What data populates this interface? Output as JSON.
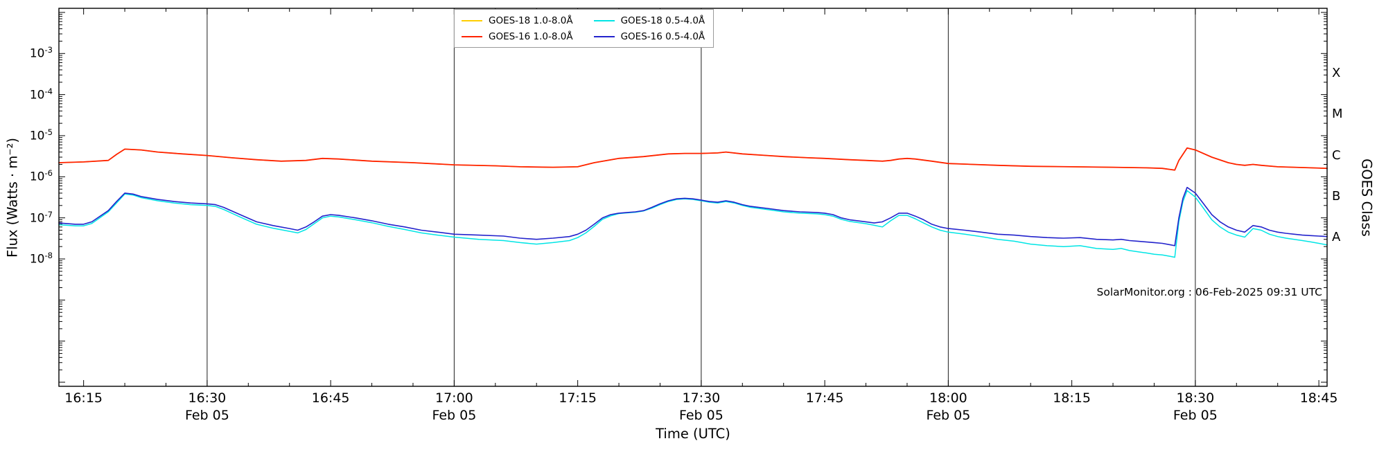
{
  "page": {
    "watermark": "SolarMonitor.org : 06-Feb-2025 09:31 UTC"
  },
  "chart_data": {
    "type": "line",
    "title": "",
    "xlabel": "Time (UTC)",
    "ylabel": "Flux (Watts · m⁻²)",
    "ylabel_right": "GOES Class",
    "grid": "vertical lines at 30-minute marks",
    "legend_position": "top-center, two columns",
    "x_axis": {
      "encoding": "minutes after 16:00 UTC",
      "start_minutes": 12,
      "end_minutes": 166,
      "minor_tick_step": 5,
      "major_ticks": [
        {
          "minute": 15,
          "label": "16:15"
        },
        {
          "minute": 30,
          "label": "16:30"
        },
        {
          "minute": 45,
          "label": "16:45"
        },
        {
          "minute": 60,
          "label": "17:00"
        },
        {
          "minute": 75,
          "label": "17:15"
        },
        {
          "minute": 90,
          "label": "17:30"
        },
        {
          "minute": 105,
          "label": "17:45"
        },
        {
          "minute": 120,
          "label": "18:00"
        },
        {
          "minute": 135,
          "label": "18:15"
        },
        {
          "minute": 150,
          "label": "18:30"
        },
        {
          "minute": 165,
          "label": "18:45"
        }
      ],
      "date_label": "Feb 05",
      "date_tick_minutes": [
        30,
        60,
        90,
        120,
        150
      ],
      "gridline_minutes": [
        30,
        60,
        90,
        120,
        150
      ]
    },
    "y_axis": {
      "scale": "log10",
      "log_min_exp": -11.1,
      "log_max_exp": -1.9,
      "ticks": [
        {
          "exponent": -3,
          "label": "10^-3"
        },
        {
          "exponent": -4,
          "label": "10^-4"
        },
        {
          "exponent": -5,
          "label": "10^-5"
        },
        {
          "exponent": -6,
          "label": "10^-6"
        },
        {
          "exponent": -7,
          "label": "10^-7"
        },
        {
          "exponent": -8,
          "label": "10^-8"
        }
      ]
    },
    "goes_classes": [
      {
        "letter": "X",
        "log10_center": -3.5
      },
      {
        "letter": "M",
        "log10_center": -4.5
      },
      {
        "letter": "C",
        "log10_center": -5.5
      },
      {
        "letter": "B",
        "log10_center": -6.5
      },
      {
        "letter": "A",
        "log10_center": -7.5
      }
    ],
    "series": [
      {
        "label": "GOES-18 1.0-8.0Å",
        "color": "#ffce00",
        "width": 1.5,
        "x": [
          12,
          15,
          18,
          19,
          20,
          22,
          24,
          27,
          30,
          33,
          36,
          39,
          42,
          44,
          46,
          50,
          55,
          60,
          65,
          68,
          72,
          75,
          77,
          80,
          83,
          86,
          88,
          90,
          92,
          93,
          95,
          98,
          100,
          103,
          105,
          108,
          110,
          112,
          113,
          114,
          115,
          116,
          118,
          120,
          123,
          126,
          130,
          135,
          140,
          144,
          146,
          147,
          147.5,
          148,
          149,
          150,
          152,
          154,
          155,
          156,
          157,
          158,
          160,
          162,
          164,
          166
        ],
        "y": [
          2.2e-06,
          2.3e-06,
          2.5e-06,
          3.5e-06,
          4.7e-06,
          4.5e-06,
          4e-06,
          3.6e-06,
          3.3e-06,
          2.9e-06,
          2.6e-06,
          2.4e-06,
          2.5e-06,
          2.8e-06,
          2.7e-06,
          2.4e-06,
          2.2e-06,
          1.95e-06,
          1.85e-06,
          1.75e-06,
          1.7e-06,
          1.75e-06,
          2.2e-06,
          2.8e-06,
          3.1e-06,
          3.6e-06,
          3.7e-06,
          3.7e-06,
          3.8e-06,
          4e-06,
          3.6e-06,
          3.3e-06,
          3.1e-06,
          2.9e-06,
          2.8e-06,
          2.6e-06,
          2.5e-06,
          2.4e-06,
          2.5e-06,
          2.7e-06,
          2.8e-06,
          2.7e-06,
          2.4e-06,
          2.1e-06,
          2e-06,
          1.9e-06,
          1.8e-06,
          1.75e-06,
          1.7e-06,
          1.65e-06,
          1.6e-06,
          1.5e-06,
          1.45e-06,
          2.5e-06,
          5e-06,
          4.5e-06,
          3e-06,
          2.2e-06,
          2e-06,
          1.9e-06,
          2e-06,
          1.9e-06,
          1.75e-06,
          1.7e-06,
          1.65e-06,
          1.6e-06
        ]
      },
      {
        "label": "GOES-16 1.0-8.0Å",
        "color": "#ff2200",
        "width": 1.8,
        "x": [
          12,
          15,
          18,
          19,
          20,
          22,
          24,
          27,
          30,
          33,
          36,
          39,
          42,
          44,
          46,
          50,
          55,
          60,
          65,
          68,
          72,
          75,
          77,
          80,
          83,
          86,
          88,
          90,
          92,
          93,
          95,
          98,
          100,
          103,
          105,
          108,
          110,
          112,
          113,
          114,
          115,
          116,
          118,
          120,
          123,
          126,
          130,
          135,
          140,
          144,
          146,
          147,
          147.5,
          148,
          149,
          150,
          152,
          154,
          155,
          156,
          157,
          158,
          160,
          162,
          164,
          166
        ],
        "y": [
          2.2e-06,
          2.3e-06,
          2.5e-06,
          3.5e-06,
          4.7e-06,
          4.5e-06,
          4e-06,
          3.6e-06,
          3.3e-06,
          2.9e-06,
          2.6e-06,
          2.4e-06,
          2.5e-06,
          2.8e-06,
          2.7e-06,
          2.4e-06,
          2.2e-06,
          1.95e-06,
          1.85e-06,
          1.75e-06,
          1.7e-06,
          1.75e-06,
          2.2e-06,
          2.8e-06,
          3.1e-06,
          3.6e-06,
          3.7e-06,
          3.7e-06,
          3.8e-06,
          4e-06,
          3.6e-06,
          3.3e-06,
          3.1e-06,
          2.9e-06,
          2.8e-06,
          2.6e-06,
          2.5e-06,
          2.4e-06,
          2.5e-06,
          2.7e-06,
          2.8e-06,
          2.7e-06,
          2.4e-06,
          2.1e-06,
          2e-06,
          1.9e-06,
          1.8e-06,
          1.75e-06,
          1.7e-06,
          1.65e-06,
          1.6e-06,
          1.5e-06,
          1.45e-06,
          2.5e-06,
          5e-06,
          4.5e-06,
          3e-06,
          2.2e-06,
          2e-06,
          1.9e-06,
          2e-06,
          1.9e-06,
          1.75e-06,
          1.7e-06,
          1.65e-06,
          1.6e-06
        ]
      },
      {
        "label": "GOES-18 0.5-4.0Å",
        "color": "#00e5e5",
        "width": 1.5,
        "x": [
          12,
          14,
          15,
          16,
          18,
          19,
          20,
          21,
          22,
          24,
          26,
          28,
          30,
          31,
          32,
          34,
          36,
          38,
          40,
          41,
          42,
          43,
          44,
          45,
          46,
          48,
          50,
          52,
          54,
          56,
          58,
          60,
          63,
          66,
          68,
          70,
          72,
          74,
          75,
          76,
          77,
          78,
          79,
          80,
          81,
          82,
          83,
          84,
          85,
          86,
          87,
          88,
          89,
          90,
          91,
          92,
          93,
          94,
          95,
          96,
          98,
          100,
          102,
          104,
          105,
          106,
          107,
          108,
          110,
          111,
          112,
          113,
          114,
          115,
          116,
          117,
          118,
          119,
          120,
          122,
          124,
          126,
          128,
          130,
          132,
          134,
          136,
          138,
          140,
          141,
          142,
          143,
          144,
          145,
          146,
          147,
          147.5,
          148,
          148.5,
          149,
          150,
          151,
          152,
          153,
          154,
          155,
          156,
          157,
          158,
          159,
          160,
          161,
          162,
          163,
          164,
          165,
          166
        ],
        "y": [
          6.8e-08,
          6.4e-08,
          6.4e-08,
          7.3e-08,
          1.4e-07,
          2.3e-07,
          3.8e-07,
          3.6e-07,
          3.1e-07,
          2.6e-07,
          2.3e-07,
          2.1e-07,
          2e-07,
          1.9e-07,
          1.6e-07,
          1.05e-07,
          7e-08,
          5.6e-08,
          4.7e-08,
          4.3e-08,
          5.2e-08,
          7.2e-08,
          1e-07,
          1.1e-07,
          1.05e-07,
          9e-08,
          7.6e-08,
          6.2e-08,
          5.2e-08,
          4.3e-08,
          3.8e-08,
          3.4e-08,
          3e-08,
          2.8e-08,
          2.5e-08,
          2.3e-08,
          2.5e-08,
          2.8e-08,
          3.3e-08,
          4.3e-08,
          6.2e-08,
          9.2e-08,
          1.12e-07,
          1.27e-07,
          1.32e-07,
          1.37e-07,
          1.47e-07,
          1.72e-07,
          2.1e-07,
          2.5e-07,
          2.8e-07,
          2.9e-07,
          2.8e-07,
          2.6e-07,
          2.4e-07,
          2.3e-07,
          2.5e-07,
          2.3e-07,
          2e-07,
          1.8e-07,
          1.6e-07,
          1.4e-07,
          1.3e-07,
          1.25e-07,
          1.2e-07,
          1.1e-07,
          9.2e-08,
          8.2e-08,
          7.2e-08,
          6.6e-08,
          6e-08,
          8.5e-08,
          1.15e-07,
          1.15e-07,
          9.5e-08,
          7.5e-08,
          6e-08,
          5e-08,
          4.5e-08,
          4e-08,
          3.5e-08,
          3e-08,
          2.7e-08,
          2.3e-08,
          2.1e-08,
          2e-08,
          2.1e-08,
          1.8e-08,
          1.7e-08,
          1.8e-08,
          1.6e-08,
          1.5e-08,
          1.4e-08,
          1.3e-08,
          1.25e-08,
          1.15e-08,
          1.1e-08,
          8e-08,
          2.5e-07,
          4.6e-07,
          3.2e-07,
          1.7e-07,
          9e-08,
          6e-08,
          4.5e-08,
          3.8e-08,
          3.4e-08,
          5.5e-08,
          5e-08,
          4e-08,
          3.5e-08,
          3.2e-08,
          3e-08,
          2.8e-08,
          2.6e-08,
          2.4e-08,
          2.2e-08
        ]
      },
      {
        "label": "GOES-16 0.5-4.0Å",
        "color": "#2222cc",
        "width": 1.6,
        "x": [
          12,
          14,
          15,
          16,
          18,
          19,
          20,
          21,
          22,
          24,
          26,
          28,
          30,
          31,
          32,
          34,
          36,
          38,
          40,
          41,
          42,
          43,
          44,
          45,
          46,
          48,
          50,
          52,
          54,
          56,
          58,
          60,
          63,
          66,
          68,
          70,
          72,
          74,
          75,
          76,
          77,
          78,
          79,
          80,
          81,
          82,
          83,
          84,
          85,
          86,
          87,
          88,
          89,
          90,
          91,
          92,
          93,
          94,
          95,
          96,
          98,
          100,
          102,
          104,
          105,
          106,
          107,
          108,
          110,
          111,
          112,
          113,
          114,
          115,
          116,
          117,
          118,
          119,
          120,
          122,
          124,
          126,
          128,
          130,
          132,
          134,
          136,
          138,
          140,
          141,
          142,
          143,
          144,
          145,
          146,
          147,
          147.5,
          148,
          148.5,
          149,
          150,
          151,
          152,
          153,
          154,
          155,
          156,
          157,
          158,
          159,
          160,
          161,
          162,
          163,
          164,
          165,
          166
        ],
        "y": [
          7.5e-08,
          7e-08,
          7e-08,
          8e-08,
          1.5e-07,
          2.5e-07,
          4e-07,
          3.8e-07,
          3.3e-07,
          2.8e-07,
          2.5e-07,
          2.3e-07,
          2.2e-07,
          2.1e-07,
          1.8e-07,
          1.2e-07,
          8e-08,
          6.5e-08,
          5.5e-08,
          5e-08,
          6e-08,
          8e-08,
          1.1e-07,
          1.2e-07,
          1.15e-07,
          1e-07,
          8.5e-08,
          7e-08,
          6e-08,
          5e-08,
          4.5e-08,
          4e-08,
          3.8e-08,
          3.6e-08,
          3.2e-08,
          3e-08,
          3.2e-08,
          3.5e-08,
          4e-08,
          5e-08,
          7e-08,
          1e-07,
          1.2e-07,
          1.3e-07,
          1.35e-07,
          1.4e-07,
          1.5e-07,
          1.8e-07,
          2.2e-07,
          2.6e-07,
          2.9e-07,
          3e-07,
          2.9e-07,
          2.7e-07,
          2.5e-07,
          2.4e-07,
          2.6e-07,
          2.4e-07,
          2.1e-07,
          1.9e-07,
          1.7e-07,
          1.5e-07,
          1.4e-07,
          1.35e-07,
          1.3e-07,
          1.2e-07,
          1e-07,
          9e-08,
          8e-08,
          7.5e-08,
          8e-08,
          1e-07,
          1.3e-07,
          1.3e-07,
          1.1e-07,
          9e-08,
          7e-08,
          6e-08,
          5.5e-08,
          5e-08,
          4.5e-08,
          4e-08,
          3.8e-08,
          3.5e-08,
          3.3e-08,
          3.2e-08,
          3.3e-08,
          3e-08,
          2.9e-08,
          3e-08,
          2.8e-08,
          2.7e-08,
          2.6e-08,
          2.5e-08,
          2.4e-08,
          2.2e-08,
          2.1e-08,
          1e-07,
          3e-07,
          5.5e-07,
          4e-07,
          2.2e-07,
          1.2e-07,
          8e-08,
          6e-08,
          5e-08,
          4.5e-08,
          6.5e-08,
          6e-08,
          5e-08,
          4.5e-08,
          4.2e-08,
          4e-08,
          3.8e-08,
          3.7e-08,
          3.6e-08,
          3.5e-08
        ]
      }
    ]
  }
}
